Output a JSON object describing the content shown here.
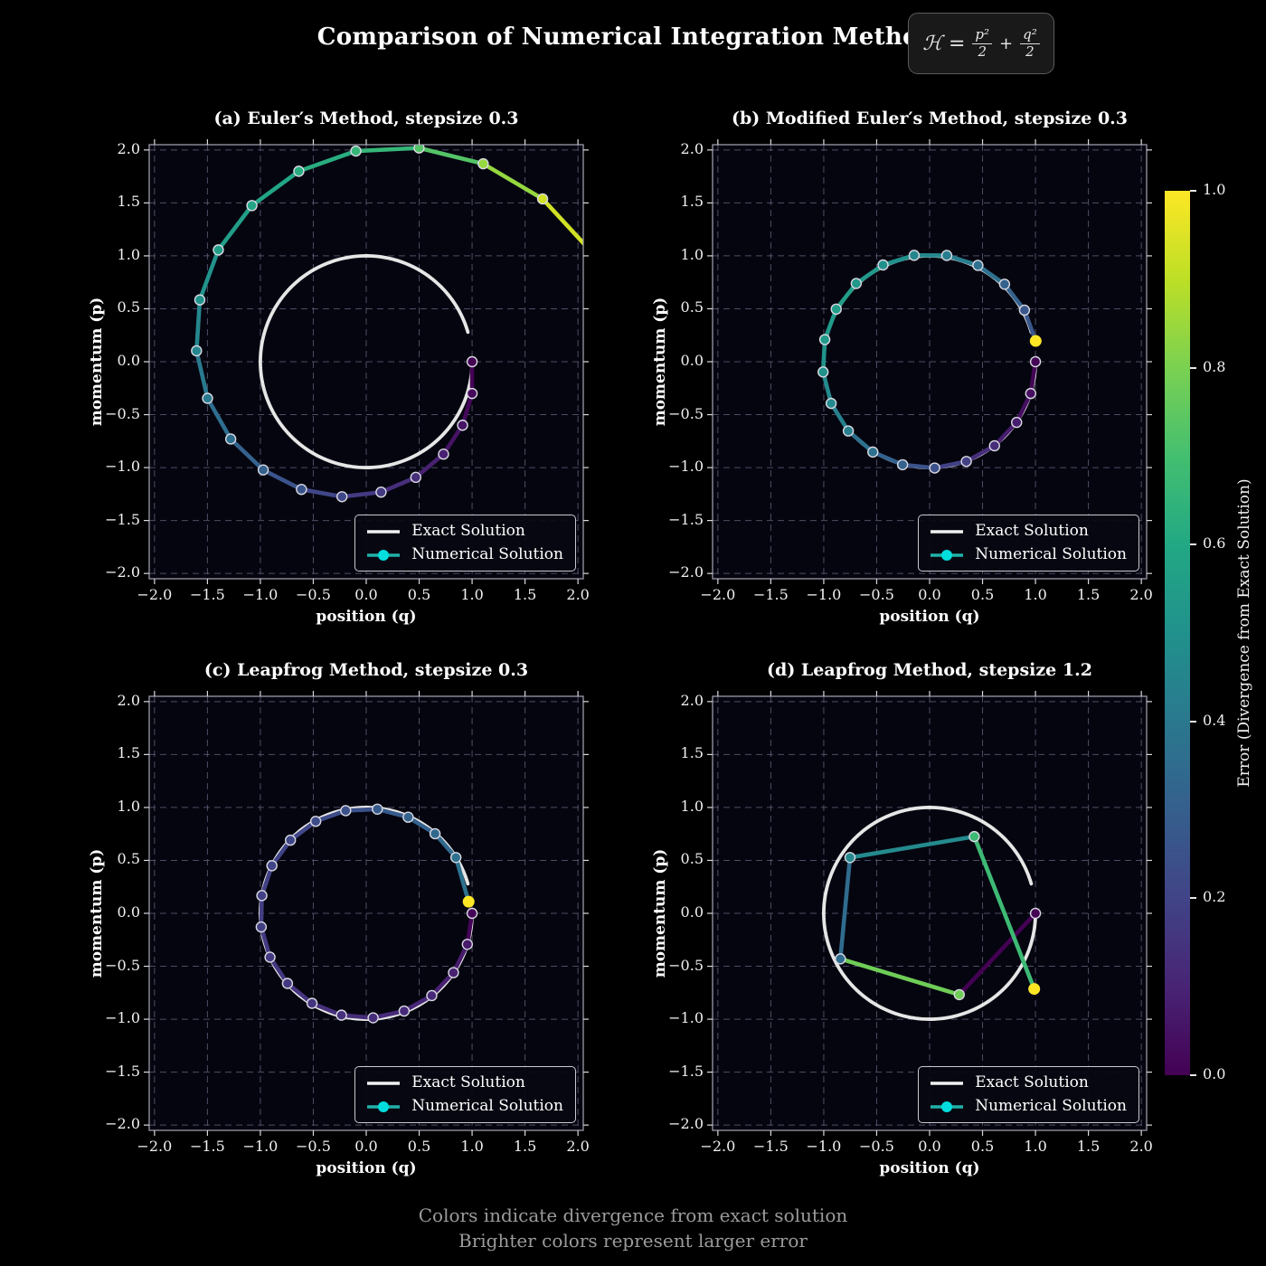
{
  "figure": {
    "title": "Comparison of Numerical Integration Methods",
    "equation": {
      "lhs": "ℋ =",
      "p_numerator": "p²",
      "p_denominator": "2",
      "operator": "+",
      "q_numerator": "q²",
      "q_denominator": "2"
    },
    "footer_line1": "Colors indicate divergence from exact solution",
    "footer_line2": "Brighter colors represent larger error",
    "background": "#000000",
    "plot_background": "#050510",
    "grid_color": "#666680",
    "spine_color": "#9a9aa8",
    "tick_color": "#d8d8e0"
  },
  "legend": {
    "exact": "Exact Solution",
    "numerical": "Numerical Solution",
    "exact_color": "#f2f2f2",
    "numerical_line_color": "#20b2aa",
    "numerical_marker_color": "#00dddd"
  },
  "chart_data": {
    "type": "line",
    "axes": {
      "xlabel": "position (q)",
      "ylabel": "momentum (p)",
      "xlim": [
        -2.05,
        2.05
      ],
      "ylim": [
        -2.05,
        2.05
      ],
      "grid": true,
      "xticks": {
        "values": [
          -2,
          -1.5,
          -1,
          -0.5,
          0,
          0.5,
          1,
          1.5,
          2
        ],
        "labels": [
          "−2.0",
          "−1.5",
          "−1.0",
          "−0.5",
          "0.0",
          "0.5",
          "1.0",
          "1.5",
          "2.0"
        ]
      },
      "yticks": {
        "values": [
          -2,
          -1.5,
          -1,
          -0.5,
          0,
          0.5,
          1,
          1.5,
          2
        ],
        "labels": [
          "−2.0",
          "−1.5",
          "−1.0",
          "−0.5",
          "0.0",
          "0.5",
          "1.0",
          "1.5",
          "2.0"
        ]
      }
    },
    "exact_solution": {
      "description": "unit circle q=cos(t), p=-sin(t), clockwise from (1,0)",
      "radius": 1,
      "t_range": [
        0,
        6
      ],
      "color": "#f2f2f2",
      "linewidth": 3.8
    },
    "marker_edge_color": "#d9d9e2",
    "subplots": [
      {
        "id": "a",
        "title": "(a) Euler′s Method, stepsize 0.3",
        "method": "Euler",
        "stepsize": 0.3,
        "points": [
          [
            1,
            0
          ],
          [
            1,
            -0.3
          ],
          [
            0.91,
            -0.6
          ],
          [
            0.73,
            -0.873
          ],
          [
            0.468,
            -1.092
          ],
          [
            0.14,
            -1.232
          ],
          [
            -0.229,
            -1.275
          ],
          [
            -0.612,
            -1.206
          ],
          [
            -0.973,
            -1.022
          ],
          [
            -1.28,
            -0.73
          ],
          [
            -1.499,
            -0.346
          ],
          [
            -1.603,
            0.103
          ],
          [
            -1.572,
            0.584
          ],
          [
            -1.397,
            1.056
          ],
          [
            -1.08,
            1.475
          ],
          [
            -0.637,
            1.799
          ],
          [
            -0.098,
            1.99
          ],
          [
            0.499,
            2.019
          ],
          [
            1.105,
            1.87
          ],
          [
            1.666,
            1.538
          ],
          [
            2.127,
            1.038
          ]
        ],
        "errors": [
          0.0,
          0.02,
          0.05,
          0.09,
          0.13,
          0.17,
          0.21,
          0.26,
          0.31,
          0.36,
          0.41,
          0.46,
          0.51,
          0.55,
          0.59,
          0.62,
          0.66,
          0.73,
          0.84,
          0.93,
          1.0
        ]
      },
      {
        "id": "b",
        "title": "(b) Modified Euler′s Method, stepsize 0.3",
        "method": "Modified Euler",
        "stepsize": 0.3,
        "points": [
          [
            1,
            0
          ],
          [
            0.955,
            -0.3
          ],
          [
            0.822,
            -0.573
          ],
          [
            0.613,
            -0.794
          ],
          [
            0.347,
            -0.942
          ],
          [
            0.048,
            -1.004
          ],
          [
            -0.255,
            -0.973
          ],
          [
            -0.536,
            -0.853
          ],
          [
            -0.768,
            -0.654
          ],
          [
            -0.93,
            -0.394
          ],
          [
            -1.006,
            -0.097
          ],
          [
            -0.99,
            0.209
          ],
          [
            -0.882,
            0.497
          ],
          [
            -0.693,
            0.739
          ],
          [
            -0.44,
            0.914
          ],
          [
            -0.146,
            1.005
          ],
          [
            0.162,
            1.004
          ],
          [
            0.456,
            0.91
          ],
          [
            0.708,
            0.732
          ],
          [
            0.896,
            0.487
          ],
          [
            1.002,
            0.196
          ]
        ],
        "errors": [
          0.01,
          0.04,
          0.08,
          0.13,
          0.19,
          0.25,
          0.31,
          0.37,
          0.43,
          0.47,
          0.51,
          0.54,
          0.55,
          0.53,
          0.5,
          0.46,
          0.42,
          0.37,
          0.31,
          0.27,
          1.0
        ]
      },
      {
        "id": "c",
        "title": "(c) Leapfrog Method, stepsize 0.3",
        "method": "Leapfrog",
        "stepsize": 0.3,
        "points": [
          [
            1,
            0
          ],
          [
            0.955,
            -0.293
          ],
          [
            0.824,
            -0.56
          ],
          [
            0.619,
            -0.777
          ],
          [
            0.358,
            -0.923
          ],
          [
            0.065,
            -0.987
          ],
          [
            -0.234,
            -0.962
          ],
          [
            -0.512,
            -0.85
          ],
          [
            -0.744,
            -0.662
          ],
          [
            -0.909,
            -0.414
          ],
          [
            -0.992,
            -0.129
          ],
          [
            -0.986,
            0.168
          ],
          [
            -0.891,
            0.45
          ],
          [
            -0.716,
            0.691
          ],
          [
            -0.477,
            0.869
          ],
          [
            -0.194,
            0.97
          ],
          [
            0.105,
            0.984
          ],
          [
            0.396,
            0.908
          ],
          [
            0.65,
            0.752
          ],
          [
            0.847,
            0.527
          ],
          [
            0.967,
            0.11
          ]
        ],
        "errors": [
          0.01,
          0.07,
          0.09,
          0.11,
          0.12,
          0.13,
          0.14,
          0.15,
          0.16,
          0.17,
          0.18,
          0.19,
          0.2,
          0.21,
          0.23,
          0.25,
          0.28,
          0.31,
          0.34,
          0.37,
          1.0
        ]
      },
      {
        "id": "d",
        "title": "(d) Leapfrog Method, stepsize 1.2",
        "method": "Leapfrog",
        "stepsize": 1.2,
        "points": [
          [
            1,
            0
          ],
          [
            0.28,
            -0.768
          ],
          [
            -0.843,
            -0.43
          ],
          [
            -0.752,
            0.527
          ],
          [
            0.422,
            0.725
          ],
          [
            0.988,
            -0.714
          ]
        ],
        "errors": [
          0.0,
          0.78,
          0.35,
          0.47,
          0.68,
          1.0
        ]
      }
    ],
    "colorbar": {
      "label": "Error (Divergence from Exact Solution)",
      "ticks": {
        "values": [
          1.0,
          0.8,
          0.6,
          0.4,
          0.2,
          0.0
        ],
        "labels": [
          "1.0",
          "0.8",
          "0.6",
          "0.4",
          "0.2",
          "0.0"
        ]
      },
      "vmin": 0,
      "vmax": 1,
      "colormap": "viridis",
      "colormap_stops": [
        [
          0,
          "#440154"
        ],
        [
          0.1,
          "#482475"
        ],
        [
          0.2,
          "#414487"
        ],
        [
          0.3,
          "#355f8d"
        ],
        [
          0.4,
          "#2a788e"
        ],
        [
          0.5,
          "#21918c"
        ],
        [
          0.6,
          "#22a884"
        ],
        [
          0.7,
          "#44bf70"
        ],
        [
          0.8,
          "#7ad151"
        ],
        [
          0.9,
          "#bddf26"
        ],
        [
          1,
          "#fde725"
        ]
      ]
    }
  }
}
